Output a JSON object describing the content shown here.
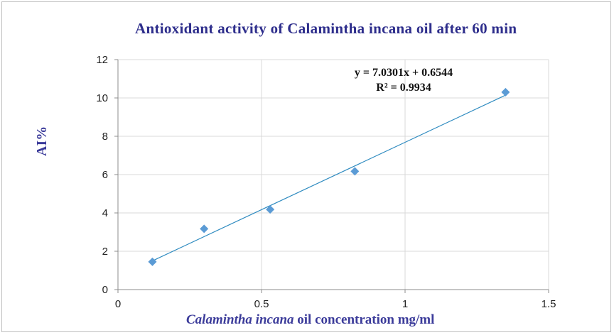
{
  "chart_data": {
    "type": "scatter",
    "title": "Antioxidant activity of Calamintha incana  oil after 60 min",
    "xlabel_italic": "Calamintha  incana",
    "xlabel_rest": " oil concentration mg/ml",
    "ylabel": "AI%",
    "xlim": [
      0,
      1.5
    ],
    "ylim": [
      0,
      12
    ],
    "x_ticks": [
      0,
      0.5,
      1,
      1.5
    ],
    "x_tick_labels": [
      "0",
      "0.5",
      "1",
      "1.5"
    ],
    "y_ticks": [
      0,
      2,
      4,
      6,
      8,
      10,
      12
    ],
    "y_tick_labels": [
      "0",
      "2",
      "4",
      "6",
      "8",
      "10",
      "12"
    ],
    "grid": true,
    "series": [
      {
        "points": [
          {
            "x": 0.12,
            "y": 1.45
          },
          {
            "x": 0.3,
            "y": 3.17
          },
          {
            "x": 0.53,
            "y": 4.18
          },
          {
            "x": 0.825,
            "y": 6.17
          },
          {
            "x": 1.35,
            "y": 10.3
          }
        ],
        "color": "#5b9bd5"
      }
    ],
    "trendline": {
      "slope": 7.0301,
      "intercept": 0.6544,
      "x_range": [
        0.12,
        1.35
      ],
      "color": "#2e8bc0",
      "equation": "y = 7.0301x + 0.6544",
      "r_squared": "R² = 0.9934"
    }
  }
}
